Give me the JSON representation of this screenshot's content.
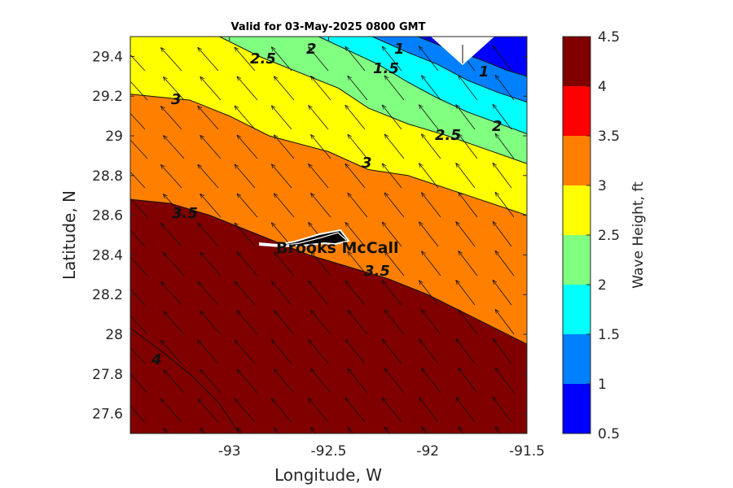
{
  "chart_data": {
    "type": "heatmap",
    "title": "Valid for 03-May-2025 0800 GMT",
    "xlabel": "Longitude, W",
    "ylabel": "Latitude, N",
    "xlim": [
      -93.5,
      -91.5
    ],
    "ylim": [
      27.5,
      29.5
    ],
    "xticks": [
      -93,
      -92.5,
      -92,
      -91.5
    ],
    "xtick_labels": [
      "-93",
      "-92.5",
      "-92",
      "-91.5"
    ],
    "yticks": [
      27.6,
      27.8,
      28,
      28.2,
      28.4,
      28.6,
      28.8,
      29,
      29.2,
      29.4
    ],
    "ytick_labels": [
      "27.6",
      "27.8",
      "28",
      "28.2",
      "28.4",
      "28.6",
      "28.8",
      "29",
      "29.2",
      "29.4"
    ],
    "colorbar": {
      "label": "Wave Height, ft",
      "ticks": [
        "0.5",
        "1",
        "1.5",
        "2",
        "2.5",
        "3",
        "3.5",
        "4",
        "4.5"
      ],
      "levels": [
        0.5,
        1,
        1.5,
        2,
        2.5,
        3,
        3.5,
        4,
        4.5
      ],
      "colors": [
        "#0000ff",
        "#0080ff",
        "#00ffff",
        "#80ff80",
        "#ffff00",
        "#ff8000",
        "#ff0000",
        "#800000"
      ]
    },
    "contour_labels": [
      "1",
      "1.5",
      "2",
      "2",
      "2.5",
      "2.5",
      "3",
      "3",
      "3.5",
      "3.5",
      "4",
      "1"
    ],
    "contour_lines": [
      {
        "level": 4.0,
        "points": [
          [
            -93.5,
            28.03
          ],
          [
            -93.35,
            27.92
          ],
          [
            -93.2,
            27.8
          ],
          [
            -93.05,
            27.65
          ],
          [
            -92.95,
            27.5
          ]
        ]
      },
      {
        "level": 3.5,
        "points": [
          [
            -93.5,
            28.68
          ],
          [
            -93.3,
            28.66
          ],
          [
            -93.1,
            28.6
          ],
          [
            -92.9,
            28.52
          ],
          [
            -92.6,
            28.4
          ],
          [
            -92.4,
            28.34
          ],
          [
            -92.2,
            28.28
          ],
          [
            -92.0,
            28.2
          ],
          [
            -91.8,
            28.1
          ],
          [
            -91.5,
            27.95
          ]
        ]
      },
      {
        "level": 3.0,
        "points": [
          [
            -93.5,
            29.21
          ],
          [
            -93.2,
            29.18
          ],
          [
            -93.0,
            29.1
          ],
          [
            -92.8,
            29.0
          ],
          [
            -92.5,
            28.92
          ],
          [
            -92.3,
            28.83
          ],
          [
            -92.1,
            28.8
          ],
          [
            -91.8,
            28.7
          ],
          [
            -91.5,
            28.6
          ]
        ]
      },
      {
        "level": 2.5,
        "points": [
          [
            -93.05,
            29.5
          ],
          [
            -92.85,
            29.4
          ],
          [
            -92.6,
            29.3
          ],
          [
            -92.45,
            29.24
          ],
          [
            -92.3,
            29.14
          ],
          [
            -92.1,
            29.06
          ],
          [
            -91.9,
            29.0
          ],
          [
            -91.7,
            28.93
          ],
          [
            -91.5,
            28.86
          ]
        ]
      },
      {
        "level": 2.0,
        "points": [
          [
            -92.55,
            29.5
          ],
          [
            -92.4,
            29.43
          ],
          [
            -92.25,
            29.36
          ],
          [
            -92.1,
            29.27
          ],
          [
            -91.95,
            29.19
          ],
          [
            -91.8,
            29.12
          ],
          [
            -91.5,
            29.01
          ]
        ]
      },
      {
        "level": 1.5,
        "points": [
          [
            -92.28,
            29.5
          ],
          [
            -92.1,
            29.42
          ],
          [
            -91.95,
            29.36
          ],
          [
            -91.8,
            29.28
          ],
          [
            -91.65,
            29.22
          ],
          [
            -91.5,
            29.17
          ]
        ]
      },
      {
        "level": 1.0,
        "points": [
          [
            -92.05,
            29.5
          ],
          [
            -91.9,
            29.44
          ],
          [
            -91.75,
            29.39
          ],
          [
            -91.6,
            29.33
          ],
          [
            -91.5,
            29.3
          ]
        ]
      }
    ],
    "site": {
      "name": "Brooks McCall",
      "lon": -92.42,
      "lat": 28.46
    },
    "vectors": {
      "direction": "toward upper-left (NW)",
      "rows": 14,
      "cols": 11
    }
  }
}
